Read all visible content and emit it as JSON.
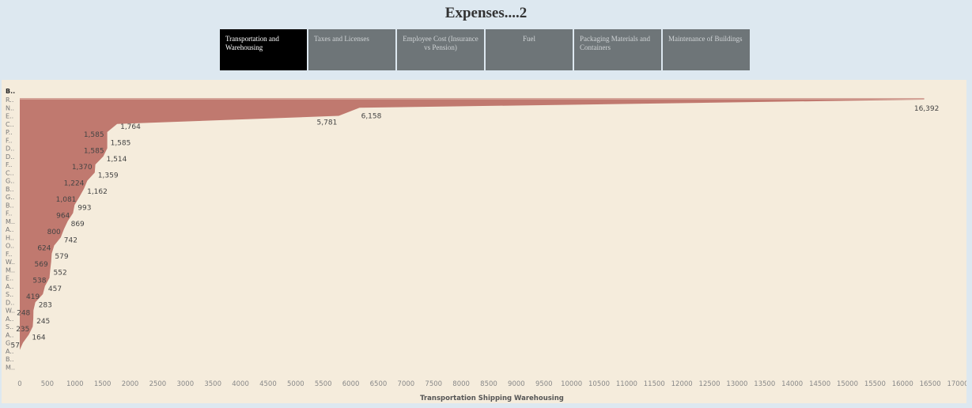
{
  "title": "Expenses....2",
  "tabs": [
    {
      "label": "Transportation and Warehousing",
      "active": true
    },
    {
      "label": "Taxes and Licenses",
      "active": false
    },
    {
      "label": "Employee Cost (Insurance vs Pension)",
      "active": false
    },
    {
      "label": "Fuel",
      "active": false
    },
    {
      "label": "Packaging Materials and Containers",
      "active": false
    },
    {
      "label": "Maintenance of Buildings",
      "active": false
    }
  ],
  "colors": {
    "area": "#c0796f",
    "background": "#f5ecdc",
    "page": "#dde8f0",
    "tab": "#6e7578",
    "tab_active": "#000000"
  },
  "chart_data": {
    "type": "area",
    "xlabel": "Transportation Shipping Warehousing",
    "ylabel": "B..",
    "xlim": [
      0,
      17000
    ],
    "xticks": [
      0,
      500,
      1000,
      1500,
      2000,
      2500,
      3000,
      3500,
      4000,
      4500,
      5000,
      5500,
      6000,
      6500,
      7000,
      7500,
      8000,
      8500,
      9000,
      9500,
      10000,
      10500,
      11000,
      11500,
      12000,
      12500,
      13000,
      13500,
      14000,
      14500,
      15000,
      15500,
      16000,
      16500,
      17000
    ],
    "categories": [
      "R..",
      "N..",
      "E..",
      "C..",
      "P..",
      "F..",
      "D..",
      "D..",
      "F..",
      "C..",
      "G..",
      "B..",
      "G..",
      "B..",
      "F..",
      "M..",
      "A..",
      "H..",
      "O..",
      "F..",
      "W..",
      "M..",
      "E..",
      "A..",
      "S..",
      "D..",
      "W..",
      "A..",
      "S..",
      "A..",
      "G..",
      "A..",
      "B..",
      "M.."
    ],
    "values": [
      16392,
      6158,
      5781,
      1764,
      1585,
      1585,
      1585,
      1514,
      1370,
      1359,
      1224,
      1162,
      1081,
      993,
      964,
      869,
      800,
      742,
      624,
      579,
      569,
      552,
      538,
      457,
      419,
      283,
      248,
      245,
      235,
      164,
      57,
      null,
      null,
      null
    ],
    "labels": [
      {
        "value": 16392,
        "text": "16,392"
      },
      {
        "value": 6158,
        "text": "6,158"
      },
      {
        "value": 5781,
        "text": "5,781"
      },
      {
        "value": 1764,
        "text": "1,764"
      },
      {
        "value": 1585,
        "text": "1,585"
      },
      {
        "value": 1585,
        "text": "1,585"
      },
      {
        "value": 1585,
        "text": "1,585"
      },
      {
        "value": 1514,
        "text": "1,514"
      },
      {
        "value": 1370,
        "text": "1,370"
      },
      {
        "value": 1359,
        "text": "1,359"
      },
      {
        "value": 1224,
        "text": "1,224"
      },
      {
        "value": 1162,
        "text": "1,162"
      },
      {
        "value": 1081,
        "text": "1,081"
      },
      {
        "value": 993,
        "text": "993"
      },
      {
        "value": 964,
        "text": "964"
      },
      {
        "value": 869,
        "text": "869"
      },
      {
        "value": 800,
        "text": "800"
      },
      {
        "value": 742,
        "text": "742"
      },
      {
        "value": 624,
        "text": "624"
      },
      {
        "value": 579,
        "text": "579"
      },
      {
        "value": 569,
        "text": "569"
      },
      {
        "value": 552,
        "text": "552"
      },
      {
        "value": 538,
        "text": "538"
      },
      {
        "value": 457,
        "text": "457"
      },
      {
        "value": 419,
        "text": "419"
      },
      {
        "value": 283,
        "text": "283"
      },
      {
        "value": 248,
        "text": "248"
      },
      {
        "value": 245,
        "text": "245"
      },
      {
        "value": 235,
        "text": "235"
      },
      {
        "value": 164,
        "text": "164"
      },
      {
        "value": 57,
        "text": "57"
      }
    ],
    "grid": false,
    "legend": "none"
  }
}
